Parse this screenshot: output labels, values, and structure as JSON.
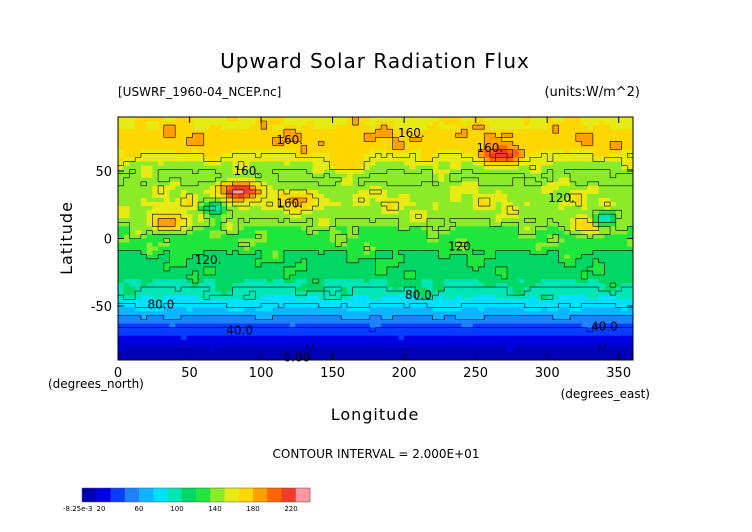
{
  "chart_data": {
    "type": "heatmap",
    "title": "Upward Solar Radiation Flux",
    "file_label": "[USWRF_1960-04_NCEP.nc]",
    "units_label": "(units:W/m^2)",
    "xlabel": "Longitude",
    "ylabel": "Latitude",
    "x_unit_left": "(degrees_north)",
    "x_unit_right": "(degrees_east)",
    "xlim": [
      0,
      360
    ],
    "ylim": [
      -90,
      90
    ],
    "x_ticks": [
      0,
      50,
      100,
      150,
      200,
      250,
      300,
      350
    ],
    "y_ticks": [
      -50,
      0,
      50
    ],
    "contour_interval_text": "CONTOUR INTERVAL = 2.000E+01",
    "contour_labels": [
      {
        "text": "160.",
        "lon": 120,
        "lat": 73
      },
      {
        "text": "160.",
        "lon": 205,
        "lat": 78
      },
      {
        "text": "160.",
        "lon": 260,
        "lat": 67
      },
      {
        "text": "160.",
        "lon": 120,
        "lat": 26
      },
      {
        "text": "160.",
        "lon": 90,
        "lat": 50
      },
      {
        "text": "120.",
        "lon": 310,
        "lat": 30
      },
      {
        "text": "120.",
        "lon": 240,
        "lat": -6
      },
      {
        "text": "120.",
        "lon": 63,
        "lat": -16
      },
      {
        "text": "80.0",
        "lon": 30,
        "lat": -49
      },
      {
        "text": "80.0",
        "lon": 210,
        "lat": -42
      },
      {
        "text": "40.0",
        "lon": 85,
        "lat": -68
      },
      {
        "text": "40.0",
        "lon": 340,
        "lat": -65
      },
      {
        "text": "0.00",
        "lon": 125,
        "lat": -88
      }
    ],
    "colorbar": {
      "min_label": "-8.25e-3",
      "tick_labels": [
        "20",
        "60",
        "100",
        "140",
        "180",
        "220"
      ],
      "tick_values": [
        20,
        60,
        100,
        140,
        180,
        220
      ],
      "vmin": 0,
      "vmax": 240,
      "colors": [
        "#0000b4",
        "#0000e6",
        "#0a3cff",
        "#1e82ff",
        "#0fb4ff",
        "#00e1ff",
        "#00e6b4",
        "#00d764",
        "#1ee63c",
        "#8ceb28",
        "#e6eb14",
        "#ffd700",
        "#ffa000",
        "#ff6400",
        "#f03c28",
        "#ff96a0"
      ]
    },
    "fields_description_values": {
      "lat_profile": [
        {
          "lat": 90,
          "value": 160
        },
        {
          "lat": 82,
          "value": 165
        },
        {
          "lat": 75,
          "value": 175
        },
        {
          "lat": 65,
          "value": 165
        },
        {
          "lat": 55,
          "value": 145
        },
        {
          "lat": 45,
          "value": 135
        },
        {
          "lat": 35,
          "value": 145
        },
        {
          "lat": 25,
          "value": 150
        },
        {
          "lat": 15,
          "value": 140
        },
        {
          "lat": 5,
          "value": 130
        },
        {
          "lat": -5,
          "value": 125
        },
        {
          "lat": -15,
          "value": 115
        },
        {
          "lat": -25,
          "value": 110
        },
        {
          "lat": -35,
          "value": 100
        },
        {
          "lat": -45,
          "value": 88
        },
        {
          "lat": -52,
          "value": 75
        },
        {
          "lat": -58,
          "value": 60
        },
        {
          "lat": -63,
          "value": 45
        },
        {
          "lat": -68,
          "value": 35
        },
        {
          "lat": -74,
          "value": 25
        },
        {
          "lat": -80,
          "value": 15
        },
        {
          "lat": -86,
          "value": 5
        },
        {
          "lat": -90,
          "value": 0
        }
      ],
      "hotspots": [
        {
          "lon": 85,
          "lat": 35,
          "peak": 230
        },
        {
          "lon": 268,
          "lat": 62,
          "peak": 225
        },
        {
          "lon": 35,
          "lat": 12,
          "peak": 190
        },
        {
          "lon": 125,
          "lat": 28,
          "peak": 185
        },
        {
          "lon": 160,
          "lat": 56,
          "peak": 180
        },
        {
          "lon": 330,
          "lat": 10,
          "peak": 180
        }
      ],
      "coldspots": [
        {
          "lon": 67,
          "lat": 22,
          "low": 95
        },
        {
          "lon": 340,
          "lat": 15,
          "low": 95
        }
      ]
    }
  }
}
